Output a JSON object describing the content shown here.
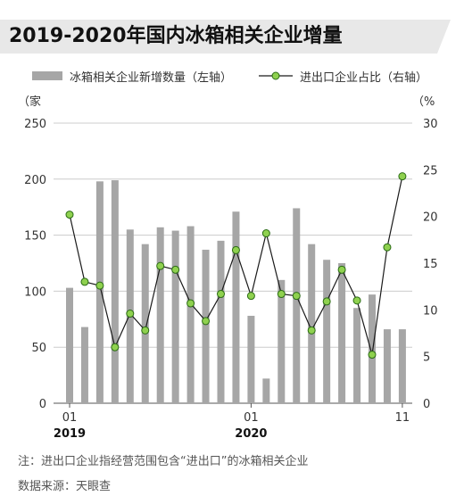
{
  "title": "2019-2020年国内冰箱相关企业增量",
  "legend": {
    "bar_label": "冰箱相关企业新增数量（左轴）",
    "line_label": "进出口企业占比（右轴）"
  },
  "axes": {
    "left_unit": "（家",
    "right_unit": "（%"
  },
  "note": "注：进出口企业指经营范围包含“进出口”的冰箱相关企业",
  "source": "数据来源：天眼查",
  "colors": {
    "bar": "#a6a6a6",
    "line": "#1a1a1a",
    "marker_fill": "#8fd14f",
    "marker_stroke": "#2a6b14",
    "title_band": "#e8e8e8",
    "grid": "#cccccc"
  },
  "chart_data": {
    "type": "bar",
    "title": "2019-2020年国内冰箱相关企业增量",
    "categories": [
      "2019-01",
      "2019-02",
      "2019-03",
      "2019-04",
      "2019-05",
      "2019-06",
      "2019-07",
      "2019-08",
      "2019-09",
      "2019-10",
      "2019-11",
      "2019-12",
      "2020-01",
      "2020-02",
      "2020-03",
      "2020-04",
      "2020-05",
      "2020-06",
      "2020-07",
      "2020-08",
      "2020-09",
      "2020-10",
      "2020-11"
    ],
    "x_tick_labels": [
      {
        "index": 0,
        "month": "01",
        "year": "2019"
      },
      {
        "index": 12,
        "month": "01",
        "year": "2020"
      },
      {
        "index": 22,
        "month": "11",
        "year": ""
      }
    ],
    "series": [
      {
        "name": "冰箱相关企业新增数量（左轴）",
        "type": "bar",
        "axis": "left",
        "values": [
          103,
          68,
          198,
          199,
          155,
          142,
          157,
          154,
          158,
          137,
          145,
          171,
          78,
          22,
          110,
          174,
          142,
          128,
          125,
          85,
          97,
          66,
          66
        ]
      },
      {
        "name": "进出口企业占比（右轴）",
        "type": "line",
        "axis": "right",
        "values": [
          20.2,
          13.0,
          12.6,
          6.0,
          9.6,
          7.8,
          14.7,
          14.3,
          10.7,
          8.8,
          11.7,
          16.4,
          11.5,
          18.2,
          11.7,
          11.5,
          7.8,
          10.9,
          14.3,
          11.0,
          5.2,
          16.7,
          24.3
        ]
      }
    ],
    "y_left": {
      "label": "（家",
      "min": 0,
      "max": 250,
      "ticks": [
        0,
        50,
        100,
        150,
        200,
        250
      ]
    },
    "y_right": {
      "label": "（%",
      "min": 0,
      "max": 30,
      "ticks": [
        0,
        5,
        10,
        15,
        20,
        25,
        30
      ]
    },
    "grid": "horizontal",
    "legend_position": "top"
  }
}
